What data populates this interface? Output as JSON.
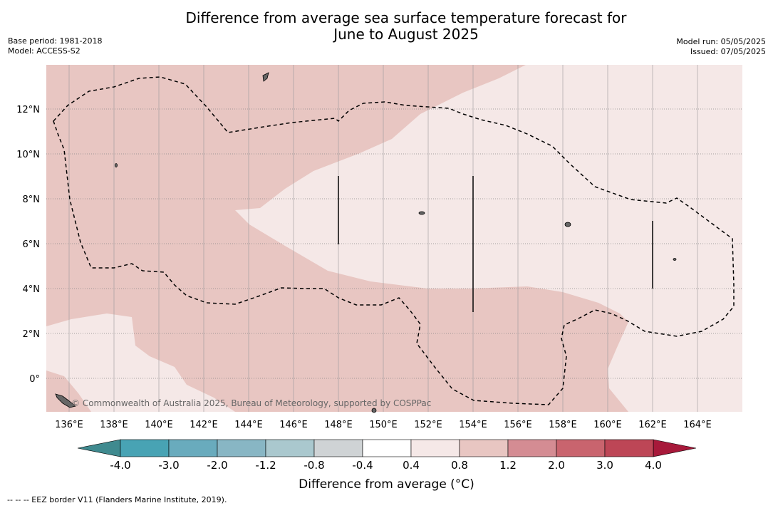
{
  "title_line1": "Difference from average sea surface temperature forecast for",
  "title_line2": "June to August 2025",
  "base_period": "Base period: 1981-2018",
  "model": "Model: ACCESS-S2",
  "model_run": "Model run: 05/05/2025",
  "issued": "Issued: 07/05/2025",
  "copyright": "© Commonwealth of Australia 2025, Bureau of Meteorology, supported by COSPPac",
  "lon_ticks": [
    "136°E",
    "138°E",
    "140°E",
    "142°E",
    "144°E",
    "146°E",
    "148°E",
    "150°E",
    "152°E",
    "154°E",
    "156°E",
    "158°E",
    "160°E",
    "162°E",
    "164°E"
  ],
  "lat_ticks": [
    "12°N",
    "10°N",
    "8°N",
    "6°N",
    "4°N",
    "2°N",
    "0°"
  ],
  "colorbar": {
    "label": "Difference from average (°C)",
    "ticks": [
      "-4.0",
      "-3.0",
      "-2.0",
      "-1.2",
      "-0.8",
      "-0.4",
      "0.4",
      "0.8",
      "1.2",
      "2.0",
      "3.0",
      "4.0"
    ],
    "colors": [
      "#3f8a8f",
      "#48a3b4",
      "#69abbd",
      "#88b6c4",
      "#aac8ce",
      "#cfd3d5",
      "#ffffff",
      "#f5e8e7",
      "#e8c6c2",
      "#d48c93",
      "#c9646e",
      "#bd4656",
      "#a7193a"
    ]
  },
  "legend_colors": {
    "light": "#f5e8e7",
    "mid": "#e8c6c2"
  },
  "footer": "--  --  -- EEZ border V11 (Flanders Marine Institute, 2019)."
}
